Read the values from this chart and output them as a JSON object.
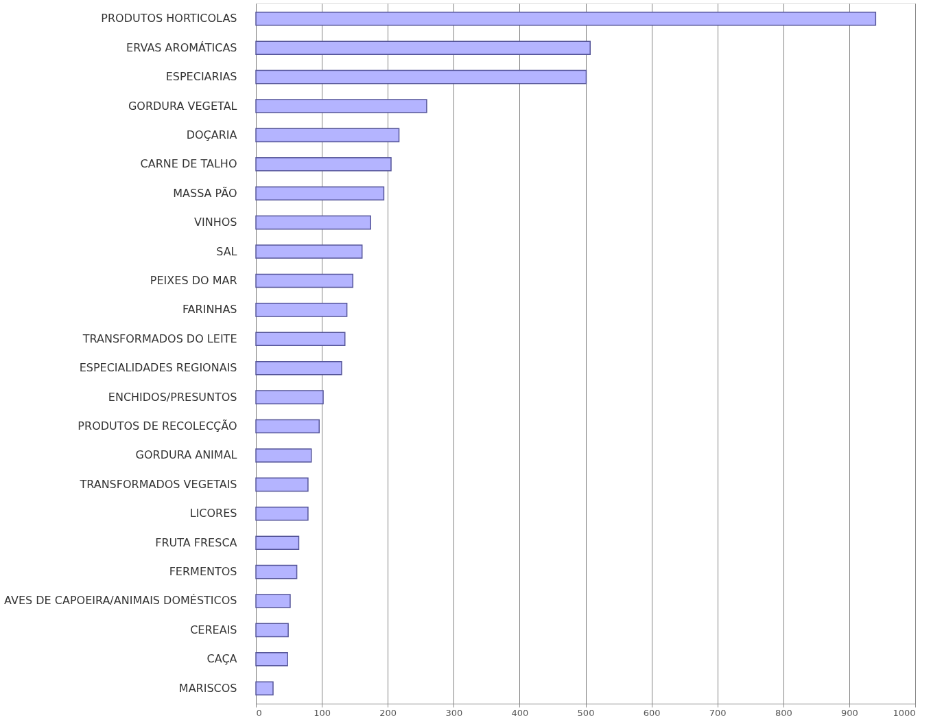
{
  "chart_data": {
    "type": "bar",
    "orientation": "horizontal",
    "categories": [
      "PRODUTOS HORTICOLAS",
      "ERVAS AROMÁTICAS",
      "ESPECIARIAS",
      "GORDURA VEGETAL",
      "DOÇARIA",
      "CARNE DE TALHO",
      "MASSA PÃO",
      "VINHOS",
      "SAL",
      "PEIXES DO MAR",
      "FARINHAS",
      "TRANSFORMADOS DO LEITE",
      "ESPECIALIDADES REGIONAIS",
      "ENCHIDOS/PRESUNTOS",
      "PRODUTOS DE RECOLECÇÃO",
      "GORDURA ANIMAL",
      "TRANSFORMADOS VEGETAIS",
      "LICORES",
      "FRUTA FRESCA",
      "FERMENTOS",
      "AVES DE CAPOEIRA/ANIMAIS DOMÉSTICOS",
      "CEREAIS",
      "CAÇA",
      "MARISCOS"
    ],
    "values": [
      940,
      507,
      501,
      259,
      217,
      205,
      194,
      174,
      161,
      147,
      138,
      135,
      130,
      102,
      96,
      84,
      79,
      79,
      65,
      62,
      52,
      49,
      48,
      26
    ],
    "color": "#b4b4ff",
    "xlim": [
      0,
      1000
    ],
    "xticks": [
      0,
      100,
      200,
      300,
      400,
      500,
      600,
      700,
      800,
      900,
      1000
    ],
    "grid": "x"
  }
}
